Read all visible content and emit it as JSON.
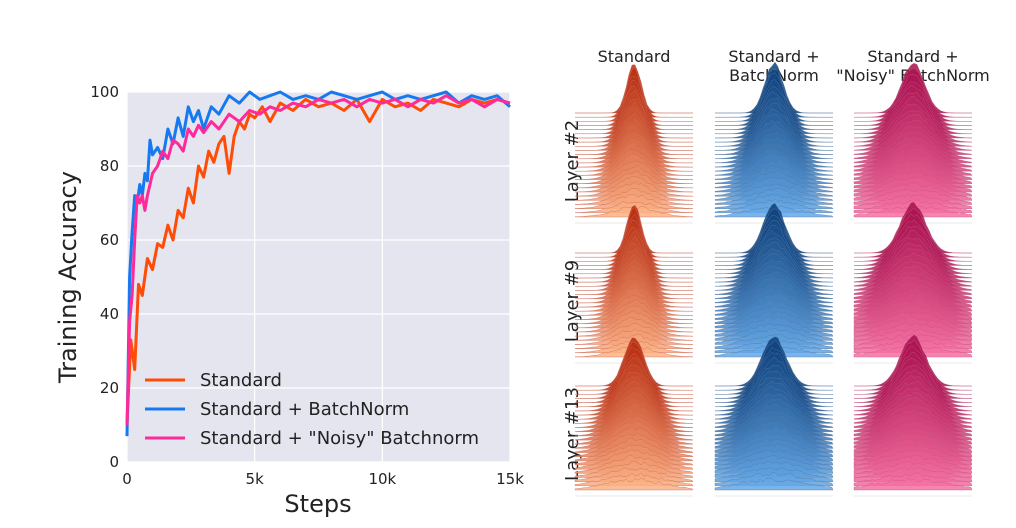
{
  "chart_data": [
    {
      "type": "line",
      "xlabel": "Steps",
      "ylabel": "Training Accuracy",
      "xlim": [
        0,
        15000
      ],
      "ylim": [
        0,
        100
      ],
      "x_ticks": [
        0,
        5000,
        10000,
        15000
      ],
      "x_tick_labels": [
        "0",
        "5k",
        "10k",
        "15k"
      ],
      "y_ticks": [
        0,
        20,
        40,
        60,
        80,
        100
      ],
      "y_tick_labels": [
        "0",
        "20",
        "40",
        "60",
        "80",
        "100"
      ],
      "grid": true,
      "legend_position": "bottom-left",
      "series": [
        {
          "name": "Standard",
          "color": "#ff4c06",
          "x": [
            0,
            150,
            300,
            450,
            600,
            800,
            1000,
            1200,
            1400,
            1600,
            1800,
            2000,
            2200,
            2400,
            2600,
            2800,
            3000,
            3200,
            3400,
            3600,
            3800,
            4000,
            4200,
            4400,
            4600,
            4800,
            5000,
            5300,
            5600,
            6000,
            6500,
            7000,
            7500,
            8000,
            8500,
            9000,
            9500,
            10000,
            10500,
            11000,
            11500,
            12000,
            12500,
            13000,
            13500,
            14000,
            14500,
            15000
          ],
          "values": [
            10,
            33,
            25,
            48,
            45,
            55,
            52,
            59,
            58,
            64,
            60,
            68,
            66,
            74,
            70,
            80,
            77,
            84,
            81,
            86,
            88,
            78,
            88,
            92,
            90,
            94,
            93,
            96,
            92,
            97,
            95,
            98,
            96,
            97,
            95,
            98,
            92,
            98,
            96,
            97,
            95,
            98,
            97,
            96,
            98,
            97,
            98,
            97
          ]
        },
        {
          "name": "Standard + BatchNorm",
          "color": "#1779f0",
          "x": [
            0,
            100,
            200,
            300,
            400,
            500,
            600,
            700,
            800,
            900,
            1000,
            1200,
            1400,
            1600,
            1800,
            2000,
            2200,
            2400,
            2600,
            2800,
            3000,
            3300,
            3600,
            4000,
            4400,
            4800,
            5200,
            5600,
            6000,
            6500,
            7000,
            7500,
            8000,
            8500,
            9000,
            9500,
            10000,
            10500,
            11000,
            11500,
            12000,
            12500,
            13000,
            13500,
            14000,
            14500,
            15000
          ],
          "values": [
            7,
            50,
            62,
            72,
            70,
            75,
            72,
            78,
            76,
            87,
            83,
            85,
            82,
            90,
            86,
            93,
            88,
            96,
            92,
            95,
            90,
            96,
            94,
            99,
            97,
            100,
            98,
            99,
            100,
            98,
            99,
            98,
            100,
            99,
            98,
            99,
            100,
            98,
            99,
            98,
            99,
            100,
            97,
            99,
            98,
            99,
            96
          ]
        },
        {
          "name": "Standard + \"Noisy\" Batchnorm",
          "color": "#ff2a9a",
          "x": [
            0,
            100,
            200,
            300,
            400,
            500,
            600,
            700,
            800,
            900,
            1000,
            1200,
            1400,
            1600,
            1800,
            2000,
            2200,
            2400,
            2600,
            2800,
            3000,
            3300,
            3600,
            4000,
            4400,
            4800,
            5200,
            5600,
            6000,
            6500,
            7000,
            7500,
            8000,
            8500,
            9000,
            9500,
            10000,
            10500,
            11000,
            11500,
            12000,
            12500,
            13000,
            13500,
            14000,
            14500,
            15000
          ],
          "values": [
            10,
            38,
            45,
            60,
            72,
            70,
            72,
            68,
            72,
            75,
            78,
            80,
            84,
            82,
            87,
            86,
            84,
            90,
            88,
            91,
            89,
            92,
            90,
            94,
            92,
            95,
            94,
            96,
            95,
            97,
            96,
            98,
            97,
            98,
            96,
            98,
            97,
            98,
            96,
            98,
            97,
            99,
            97,
            98,
            96,
            98,
            97
          ]
        }
      ]
    },
    {
      "type": "ridgeline-grid",
      "column_headers": [
        "Standard",
        "Standard +\nBatchNorm",
        "Standard +\n\"Noisy\" BatchNorm"
      ],
      "row_labels": [
        "Layer #2",
        "Layer #9",
        "Layer #13"
      ],
      "column_colors": [
        {
          "dark": "#b72a0e",
          "light": "#fbb084"
        },
        {
          "dark": "#0d3f7a",
          "light": "#64a7e6"
        },
        {
          "dark": "#a8104e",
          "light": "#f56fa2"
        }
      ],
      "distribution_spread": [
        [
          1.0,
          1.3,
          1.6
        ],
        [
          1.0,
          1.5,
          1.8
        ],
        [
          1.4,
          1.7,
          1.8
        ]
      ]
    }
  ]
}
